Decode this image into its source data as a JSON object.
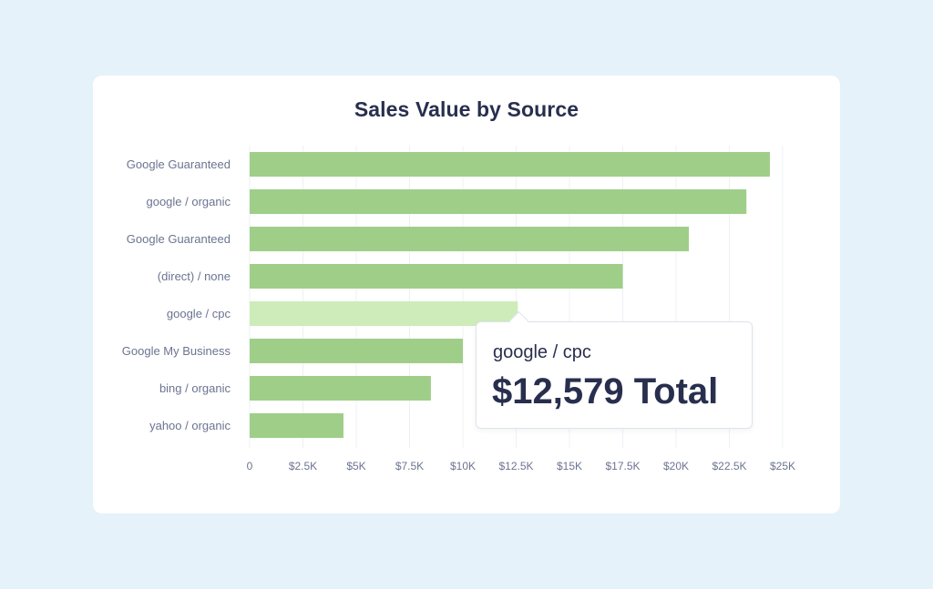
{
  "chart_data": {
    "type": "bar",
    "orientation": "horizontal",
    "title": "Sales Value by Source",
    "categories": [
      "Google Guaranteed",
      "google / organic",
      "Google Guaranteed",
      "(direct) / none",
      "google / cpc",
      "Google My Business",
      "bing / organic",
      "yahoo / organic"
    ],
    "values": [
      24400,
      23300,
      20600,
      17500,
      12579,
      10000,
      8500,
      4400
    ],
    "xlim": [
      0,
      25000
    ],
    "x_ticks": [
      0,
      2500,
      5000,
      7500,
      10000,
      12500,
      15000,
      17500,
      20000,
      22500,
      25000
    ],
    "x_tick_labels": [
      "0",
      "$2.5K",
      "$5K",
      "$7.5K",
      "$10K",
      "$12.5K",
      "$15K",
      "$17.5K",
      "$20K",
      "$22.5K",
      "$25K"
    ],
    "grid": "vertical",
    "highlighted_index": 4,
    "colors": {
      "bar": "#9fce88",
      "bar_highlight": "#cdecba",
      "grid": "#eef0f4"
    }
  },
  "tooltip": {
    "source": "google / cpc",
    "value": "$12,579 Total"
  }
}
